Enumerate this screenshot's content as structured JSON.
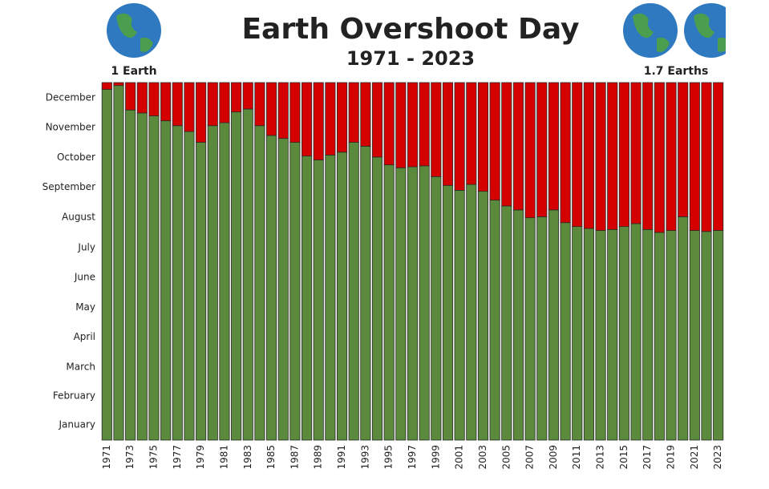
{
  "chart_data": {
    "type": "stacked_bar",
    "title": "Earth Overshoot Day",
    "subtitle": "1971 - 2023",
    "annotations": [
      "1 Earth",
      "1.7 Earths"
    ],
    "categories": [
      "1971",
      null,
      "1973",
      null,
      "1975",
      null,
      "1977",
      null,
      "1979",
      null,
      "1981",
      null,
      "1983",
      null,
      "1985",
      null,
      "1987",
      null,
      "1989",
      null,
      "1991",
      null,
      "1993",
      null,
      "1995",
      null,
      "1997",
      null,
      "1999",
      null,
      "2001",
      null,
      "2003",
      null,
      "2005",
      null,
      "2007",
      null,
      "2009",
      null,
      "2011",
      null,
      "2013",
      null,
      "2015",
      null,
      "2017",
      null,
      "2019",
      null,
      "2021",
      null,
      "2023"
    ],
    "series": [
      {
        "color": "#5b8a3c",
        "values": [
          358,
          362,
          337,
          334,
          331,
          326,
          321,
          315,
          304,
          321,
          324,
          335,
          338,
          321,
          311,
          308,
          304,
          290,
          286,
          291,
          294,
          304,
          300,
          289,
          281,
          278,
          279,
          280,
          269,
          260,
          255,
          261,
          254,
          245,
          239,
          235,
          227,
          228,
          235,
          222,
          218,
          216,
          214,
          215,
          218,
          221,
          215,
          212,
          214,
          228,
          214,
          213,
          214
        ]
      },
      {
        "color": "#d40000",
        "values": [
          7,
          3,
          28,
          31,
          34,
          39,
          44,
          50,
          61,
          44,
          41,
          30,
          27,
          44,
          54,
          57,
          61,
          75,
          79,
          74,
          71,
          61,
          65,
          76,
          84,
          87,
          86,
          85,
          96,
          105,
          110,
          104,
          111,
          120,
          126,
          130,
          138,
          137,
          130,
          143,
          147,
          149,
          151,
          150,
          147,
          144,
          150,
          153,
          151,
          137,
          151,
          152,
          151
        ]
      }
    ],
    "ylim": [
      0,
      365
    ],
    "yticks": [
      {
        "value": 15.5,
        "label": "January"
      },
      {
        "value": 45,
        "label": "February"
      },
      {
        "value": 74.5,
        "label": "March"
      },
      {
        "value": 105,
        "label": "April"
      },
      {
        "value": 135.5,
        "label": "May"
      },
      {
        "value": 166,
        "label": "June"
      },
      {
        "value": 196.5,
        "label": "July"
      },
      {
        "value": 227.5,
        "label": "August"
      },
      {
        "value": 258,
        "label": "September"
      },
      {
        "value": 288.5,
        "label": "October"
      },
      {
        "value": 319,
        "label": "November"
      },
      {
        "value": 349.5,
        "label": "December"
      }
    ]
  }
}
